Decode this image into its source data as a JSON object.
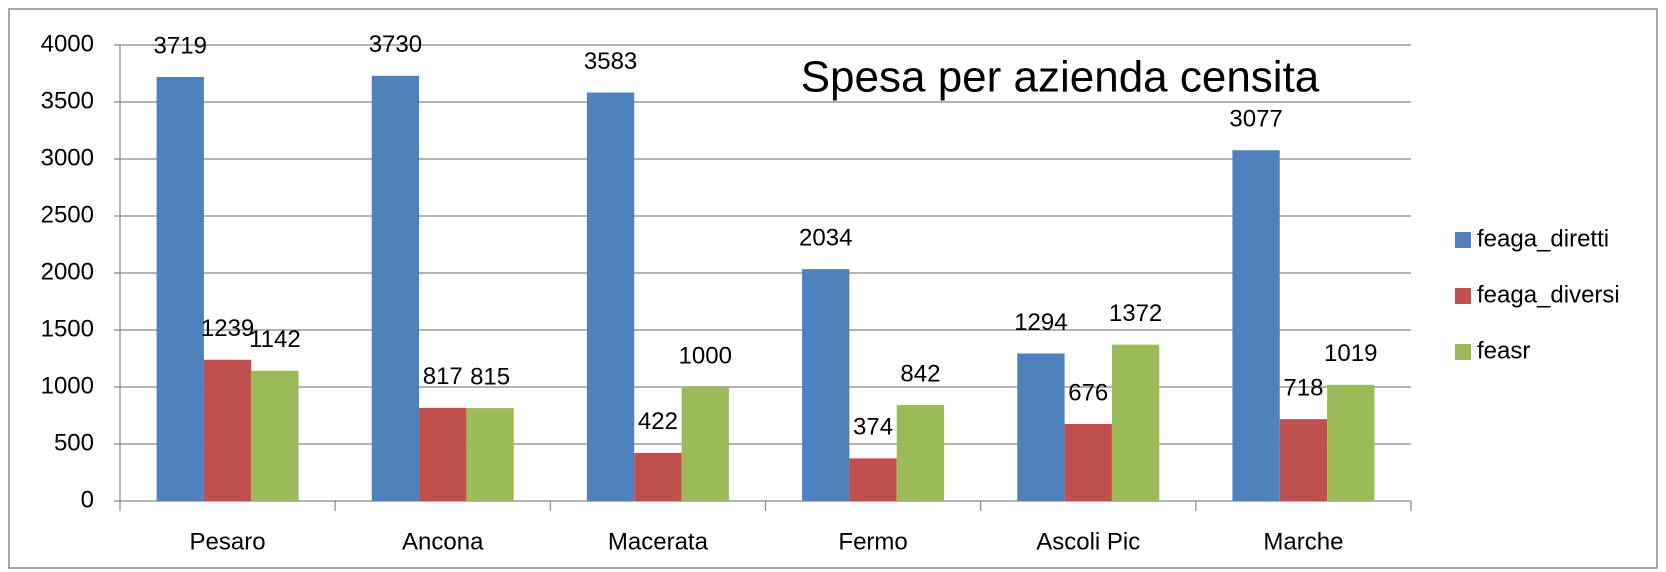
{
  "chart_data": {
    "type": "bar",
    "title": "Spesa per azienda censita",
    "categories": [
      "Pesaro",
      "Ancona",
      "Macerata",
      "Fermo",
      "Ascoli Pic",
      "Marche"
    ],
    "series": [
      {
        "name": "feaga_diretti",
        "color": "#4f81bd",
        "values": [
          3719,
          3730,
          3583,
          2034,
          1294,
          3077
        ]
      },
      {
        "name": "feaga_diversi",
        "color": "#c0504d",
        "values": [
          1239,
          817,
          422,
          374,
          676,
          718
        ]
      },
      {
        "name": "feasr",
        "color": "#9bbb59",
        "values": [
          1142,
          815,
          1000,
          842,
          1372,
          1019
        ]
      }
    ],
    "ylim": [
      0,
      4000
    ],
    "yticks": [
      0,
      500,
      1000,
      1500,
      2000,
      2500,
      3000,
      3500,
      4000
    ],
    "grid": true,
    "legend": "right"
  }
}
